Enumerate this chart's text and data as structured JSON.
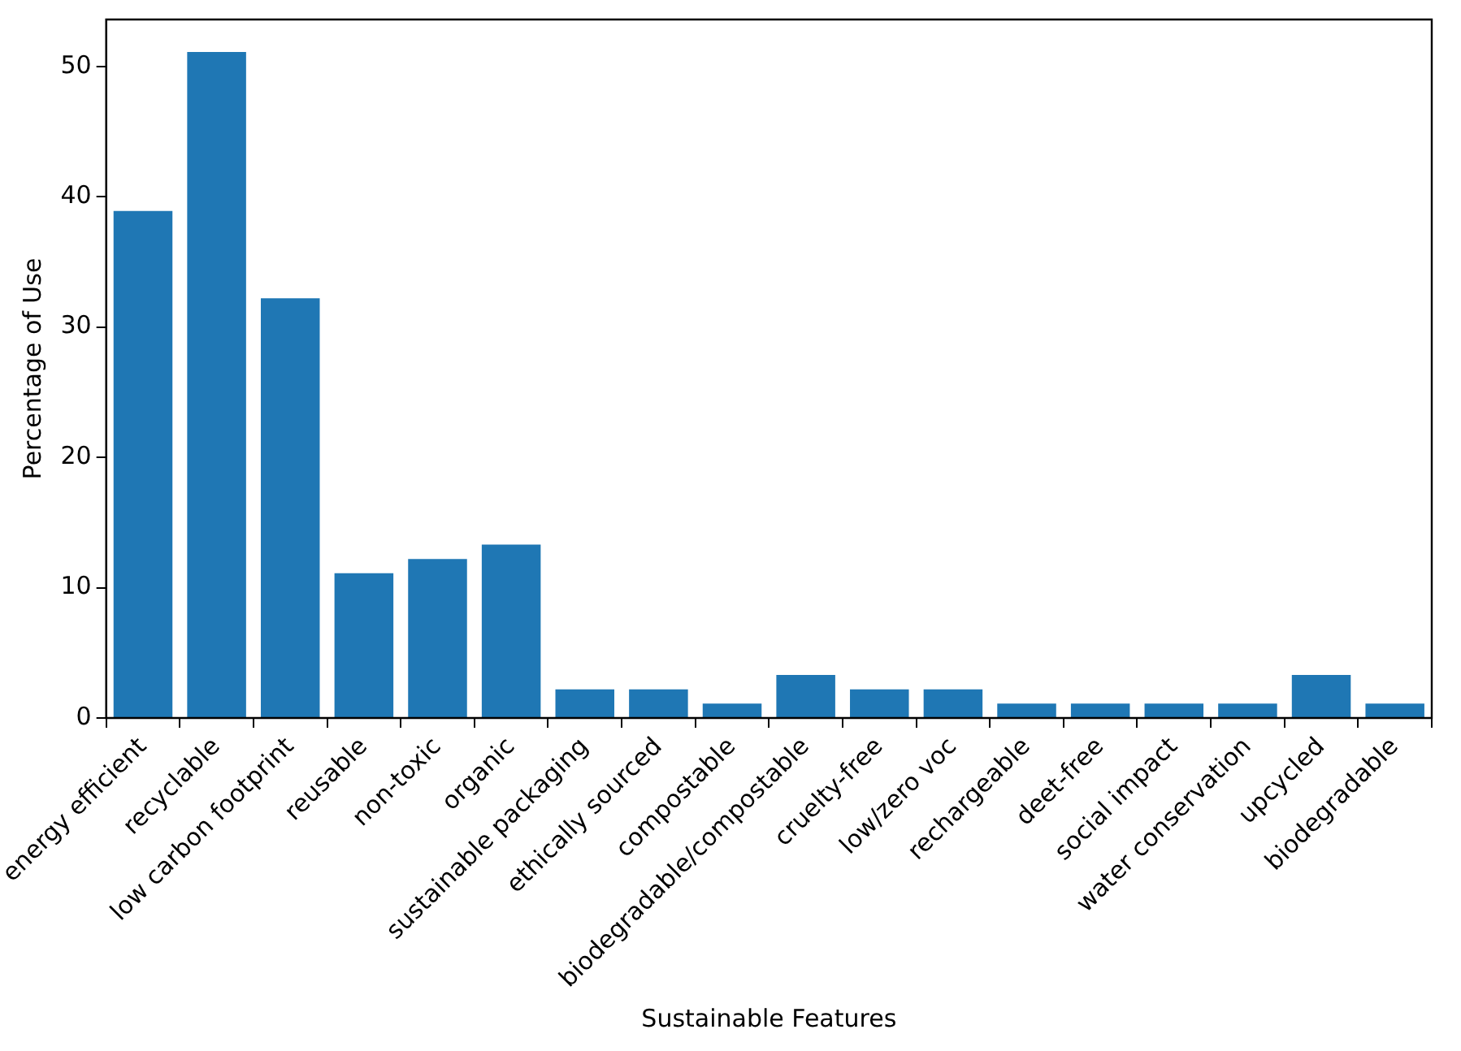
{
  "chart_data": {
    "type": "bar",
    "xlabel": "Sustainable Features",
    "ylabel": "Percentage of Use",
    "categories": [
      "energy efficient",
      "recyclable",
      "low carbon footprint",
      "reusable",
      "non-toxic",
      "organic",
      "sustainable packaging",
      "ethically sourced",
      "compostable",
      "biodegradable/compostable",
      "cruelty-free",
      "low/zero voc",
      "rechargeable",
      "deet-free",
      "social impact",
      "water conservation",
      "upcycled",
      "biodegradable"
    ],
    "values": [
      38.9,
      51.1,
      32.2,
      11.1,
      12.2,
      13.3,
      2.2,
      2.2,
      1.1,
      3.3,
      2.2,
      2.2,
      1.1,
      1.1,
      1.1,
      1.1,
      3.3,
      1.1
    ],
    "color": "#1f77b4",
    "ylim": [
      0,
      53.6
    ],
    "yticks": [
      0,
      10,
      20,
      30,
      40,
      50
    ],
    "grid": false,
    "legend": false
  }
}
